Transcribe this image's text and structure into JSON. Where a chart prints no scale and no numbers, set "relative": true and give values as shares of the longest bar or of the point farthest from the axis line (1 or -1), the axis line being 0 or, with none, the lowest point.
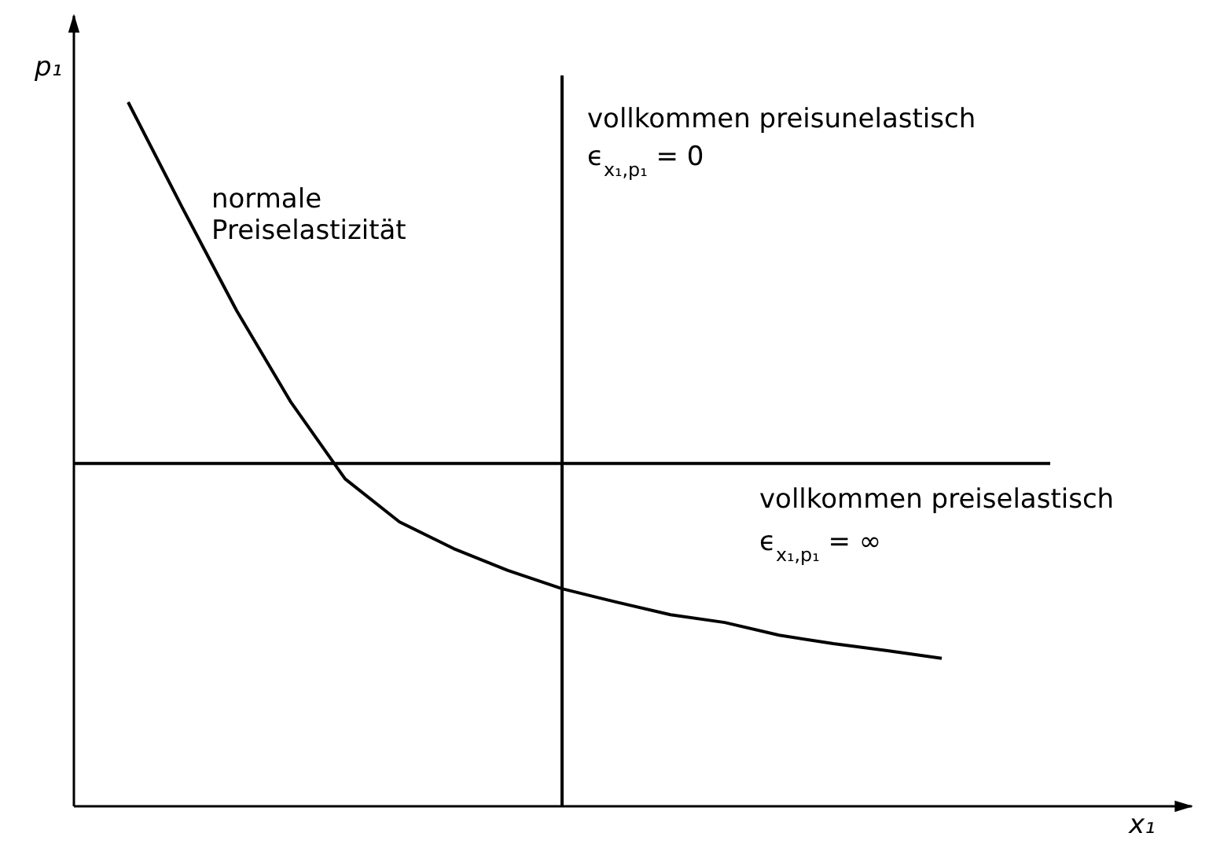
{
  "chart_data": {
    "type": "line",
    "relative": true,
    "xlabel": "x₁",
    "ylabel": "p₁",
    "line_style": "solid",
    "categories": [
      null,
      null,
      null,
      null,
      null,
      null,
      null,
      null,
      null,
      null,
      null,
      null,
      null,
      null,
      null,
      null,
      null,
      null,
      null
    ],
    "series": [
      {
        "name": "normale Preiselastizität",
        "color": "#000000",
        "values": [
          null,
          1,
          0.85,
          0.704,
          0.574,
          0.465,
          0.404,
          0.366,
          0.335,
          0.309,
          0.29,
          0.272,
          0.261,
          0.243,
          0.231,
          0.221,
          0.21,
          null,
          null
        ]
      },
      {
        "name": "vollkommen preiselastisch",
        "color": "#000000",
        "values": [
          0.487,
          0.487,
          0.487,
          0.487,
          0.487,
          0.487,
          0.487,
          0.487,
          0.487,
          0.487,
          0.487,
          0.487,
          0.487,
          0.487,
          0.487,
          0.487,
          0.487,
          0.487,
          0.487
        ]
      }
    ],
    "annotations": [
      "vollkommen preisunelastisch",
      "ϵ$_{x₁,p₁}$ = 0",
      "ϵ$_{x₁,p₁}$ = ∞"
    ]
  }
}
